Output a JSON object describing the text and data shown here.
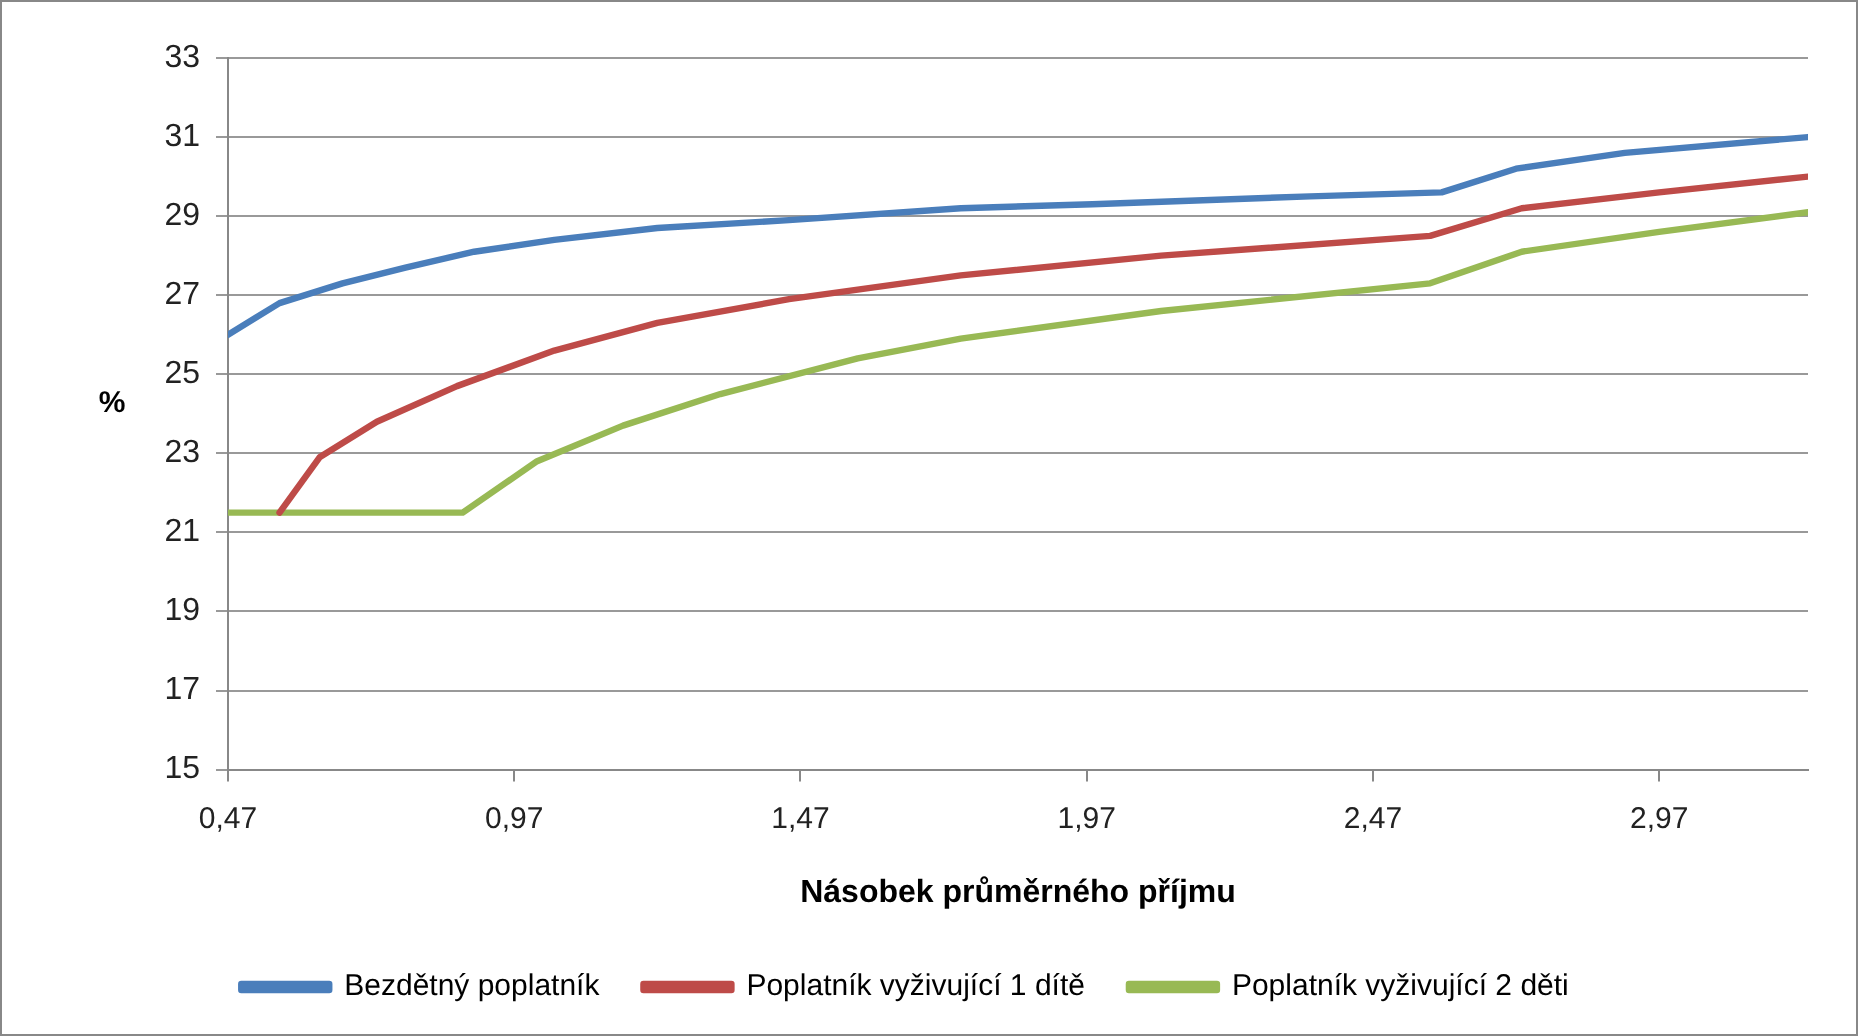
{
  "chart_data": {
    "type": "line",
    "xlabel": "Násobek průměrného příjmu",
    "ylabel": "%",
    "xlim": [
      0.47,
      3.23
    ],
    "xticks": [
      {
        "value": 0.47,
        "label": "0,47"
      },
      {
        "value": 0.97,
        "label": "0,97"
      },
      {
        "value": 1.47,
        "label": "1,47"
      },
      {
        "value": 1.97,
        "label": "1,97"
      },
      {
        "value": 2.47,
        "label": "2,47"
      },
      {
        "value": 2.97,
        "label": "2,97"
      }
    ],
    "ylim": [
      15,
      33
    ],
    "yticks": [
      15,
      17,
      19,
      21,
      23,
      25,
      27,
      29,
      31,
      33
    ],
    "grid": "y",
    "legend": "bottom",
    "marker": "none",
    "line_style": "solid",
    "series": [
      {
        "name": "Bezdětný poplatník",
        "color": "#4a7ebb",
        "x": [
          0.47,
          0.56,
          0.67,
          0.78,
          0.9,
          1.04,
          1.22,
          1.45,
          1.75,
          1.98,
          2.36,
          2.59,
          2.72,
          2.91,
          3.23
        ],
        "values": [
          26.0,
          26.8,
          27.3,
          27.7,
          28.1,
          28.4,
          28.7,
          28.9,
          29.2,
          29.3,
          29.5,
          29.6,
          30.2,
          30.6,
          31.0
        ]
      },
      {
        "name": "Poplatník vyživující 1 dítě",
        "color": "#be4b48",
        "x": [
          0.56,
          0.63,
          0.73,
          0.87,
          1.04,
          1.22,
          1.45,
          1.75,
          2.1,
          2.57,
          2.73,
          2.97,
          3.23
        ],
        "values": [
          21.5,
          22.9,
          23.8,
          24.7,
          25.6,
          26.3,
          26.9,
          27.5,
          28.0,
          28.5,
          29.2,
          29.6,
          30.0
        ]
      },
      {
        "name": "Poplatník vyživující 2 děti",
        "color": "#98b954",
        "x": [
          0.47,
          0.88,
          1.01,
          1.16,
          1.33,
          1.57,
          1.75,
          2.1,
          2.57,
          2.73,
          2.97,
          3.23
        ],
        "values": [
          21.5,
          21.5,
          22.8,
          23.7,
          24.5,
          25.4,
          25.9,
          26.6,
          27.3,
          28.1,
          28.6,
          29.1
        ]
      }
    ]
  }
}
